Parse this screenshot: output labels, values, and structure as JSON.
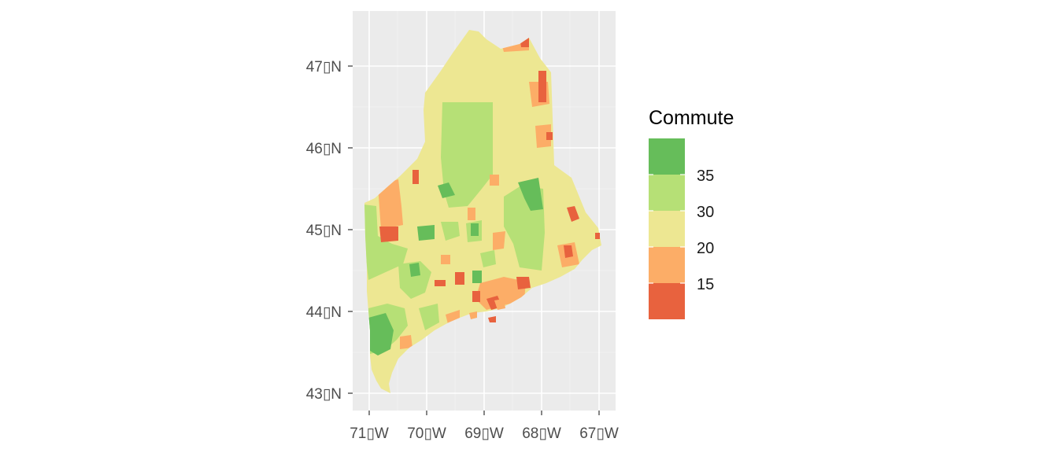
{
  "map": {
    "axes": {
      "y_tick_labels": [
        "47▯N",
        "46▯N",
        "45▯N",
        "44▯N",
        "43▯N"
      ],
      "x_tick_labels": [
        "71▯W",
        "70▯W",
        "69▯W",
        "68▯W",
        "67▯W"
      ]
    },
    "panel_background": "#ebebeb",
    "grid_color": "#ffffff",
    "region": "Maine",
    "legend": {
      "title": "Commute",
      "labels": [
        "35",
        "30",
        "20",
        "15"
      ],
      "colors": [
        "#66bd5a",
        "#b6e076",
        "#ede792",
        "#fcad67",
        "#e8623e"
      ]
    }
  }
}
